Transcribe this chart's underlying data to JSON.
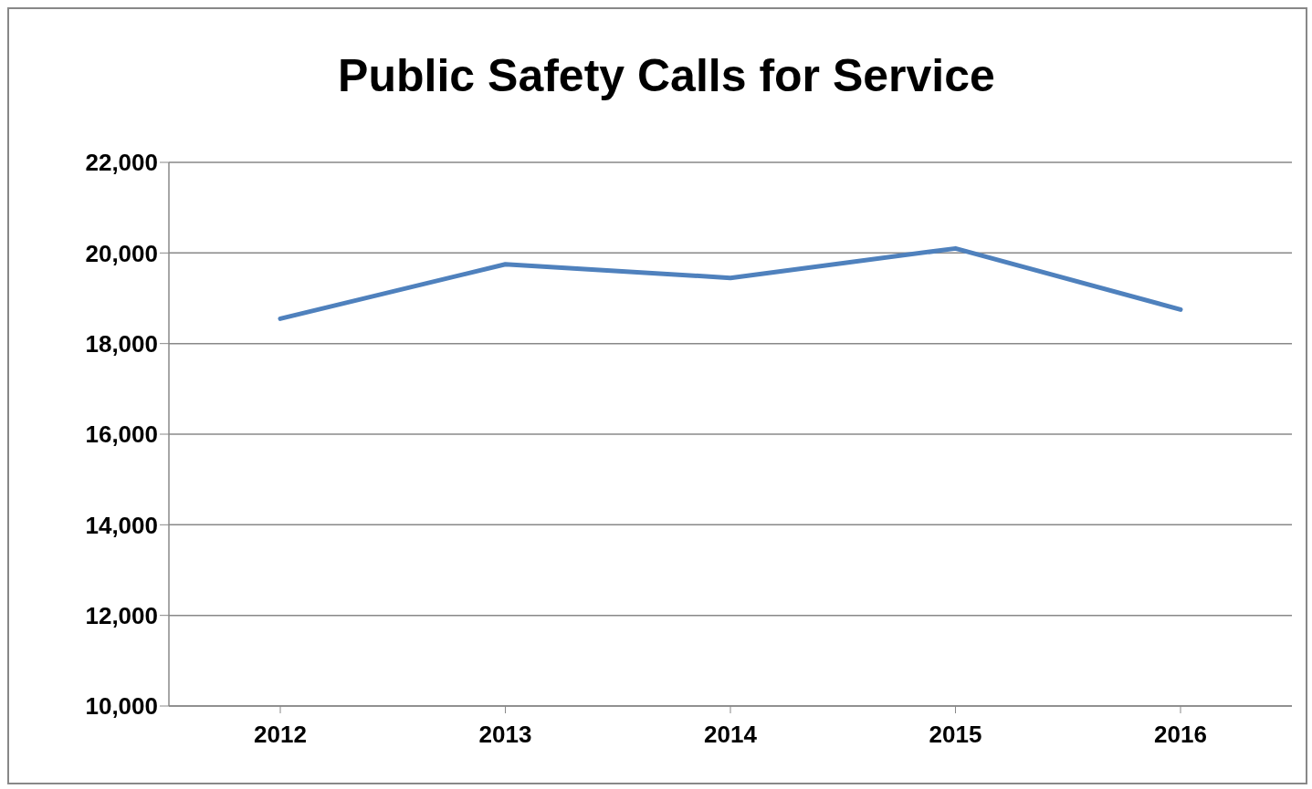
{
  "chart_data": {
    "type": "line",
    "title": "Public Safety Calls for Service",
    "categories": [
      "2012",
      "2013",
      "2014",
      "2015",
      "2016"
    ],
    "series": [
      {
        "color": "#4f81bd",
        "values": [
          18550,
          19750,
          19450,
          20100,
          18750
        ]
      }
    ],
    "ylim": [
      10000,
      22000
    ],
    "yticks": [
      {
        "value": 10000,
        "label": "10,000"
      },
      {
        "value": 12000,
        "label": "12,000"
      },
      {
        "value": 14000,
        "label": "14,000"
      },
      {
        "value": 16000,
        "label": "16,000"
      },
      {
        "value": 18000,
        "label": "18,000"
      },
      {
        "value": 20000,
        "label": "20,000"
      },
      {
        "value": 22000,
        "label": "22,000"
      }
    ],
    "grid": "y",
    "legend": false,
    "marker": "none",
    "line_style": "solid"
  }
}
